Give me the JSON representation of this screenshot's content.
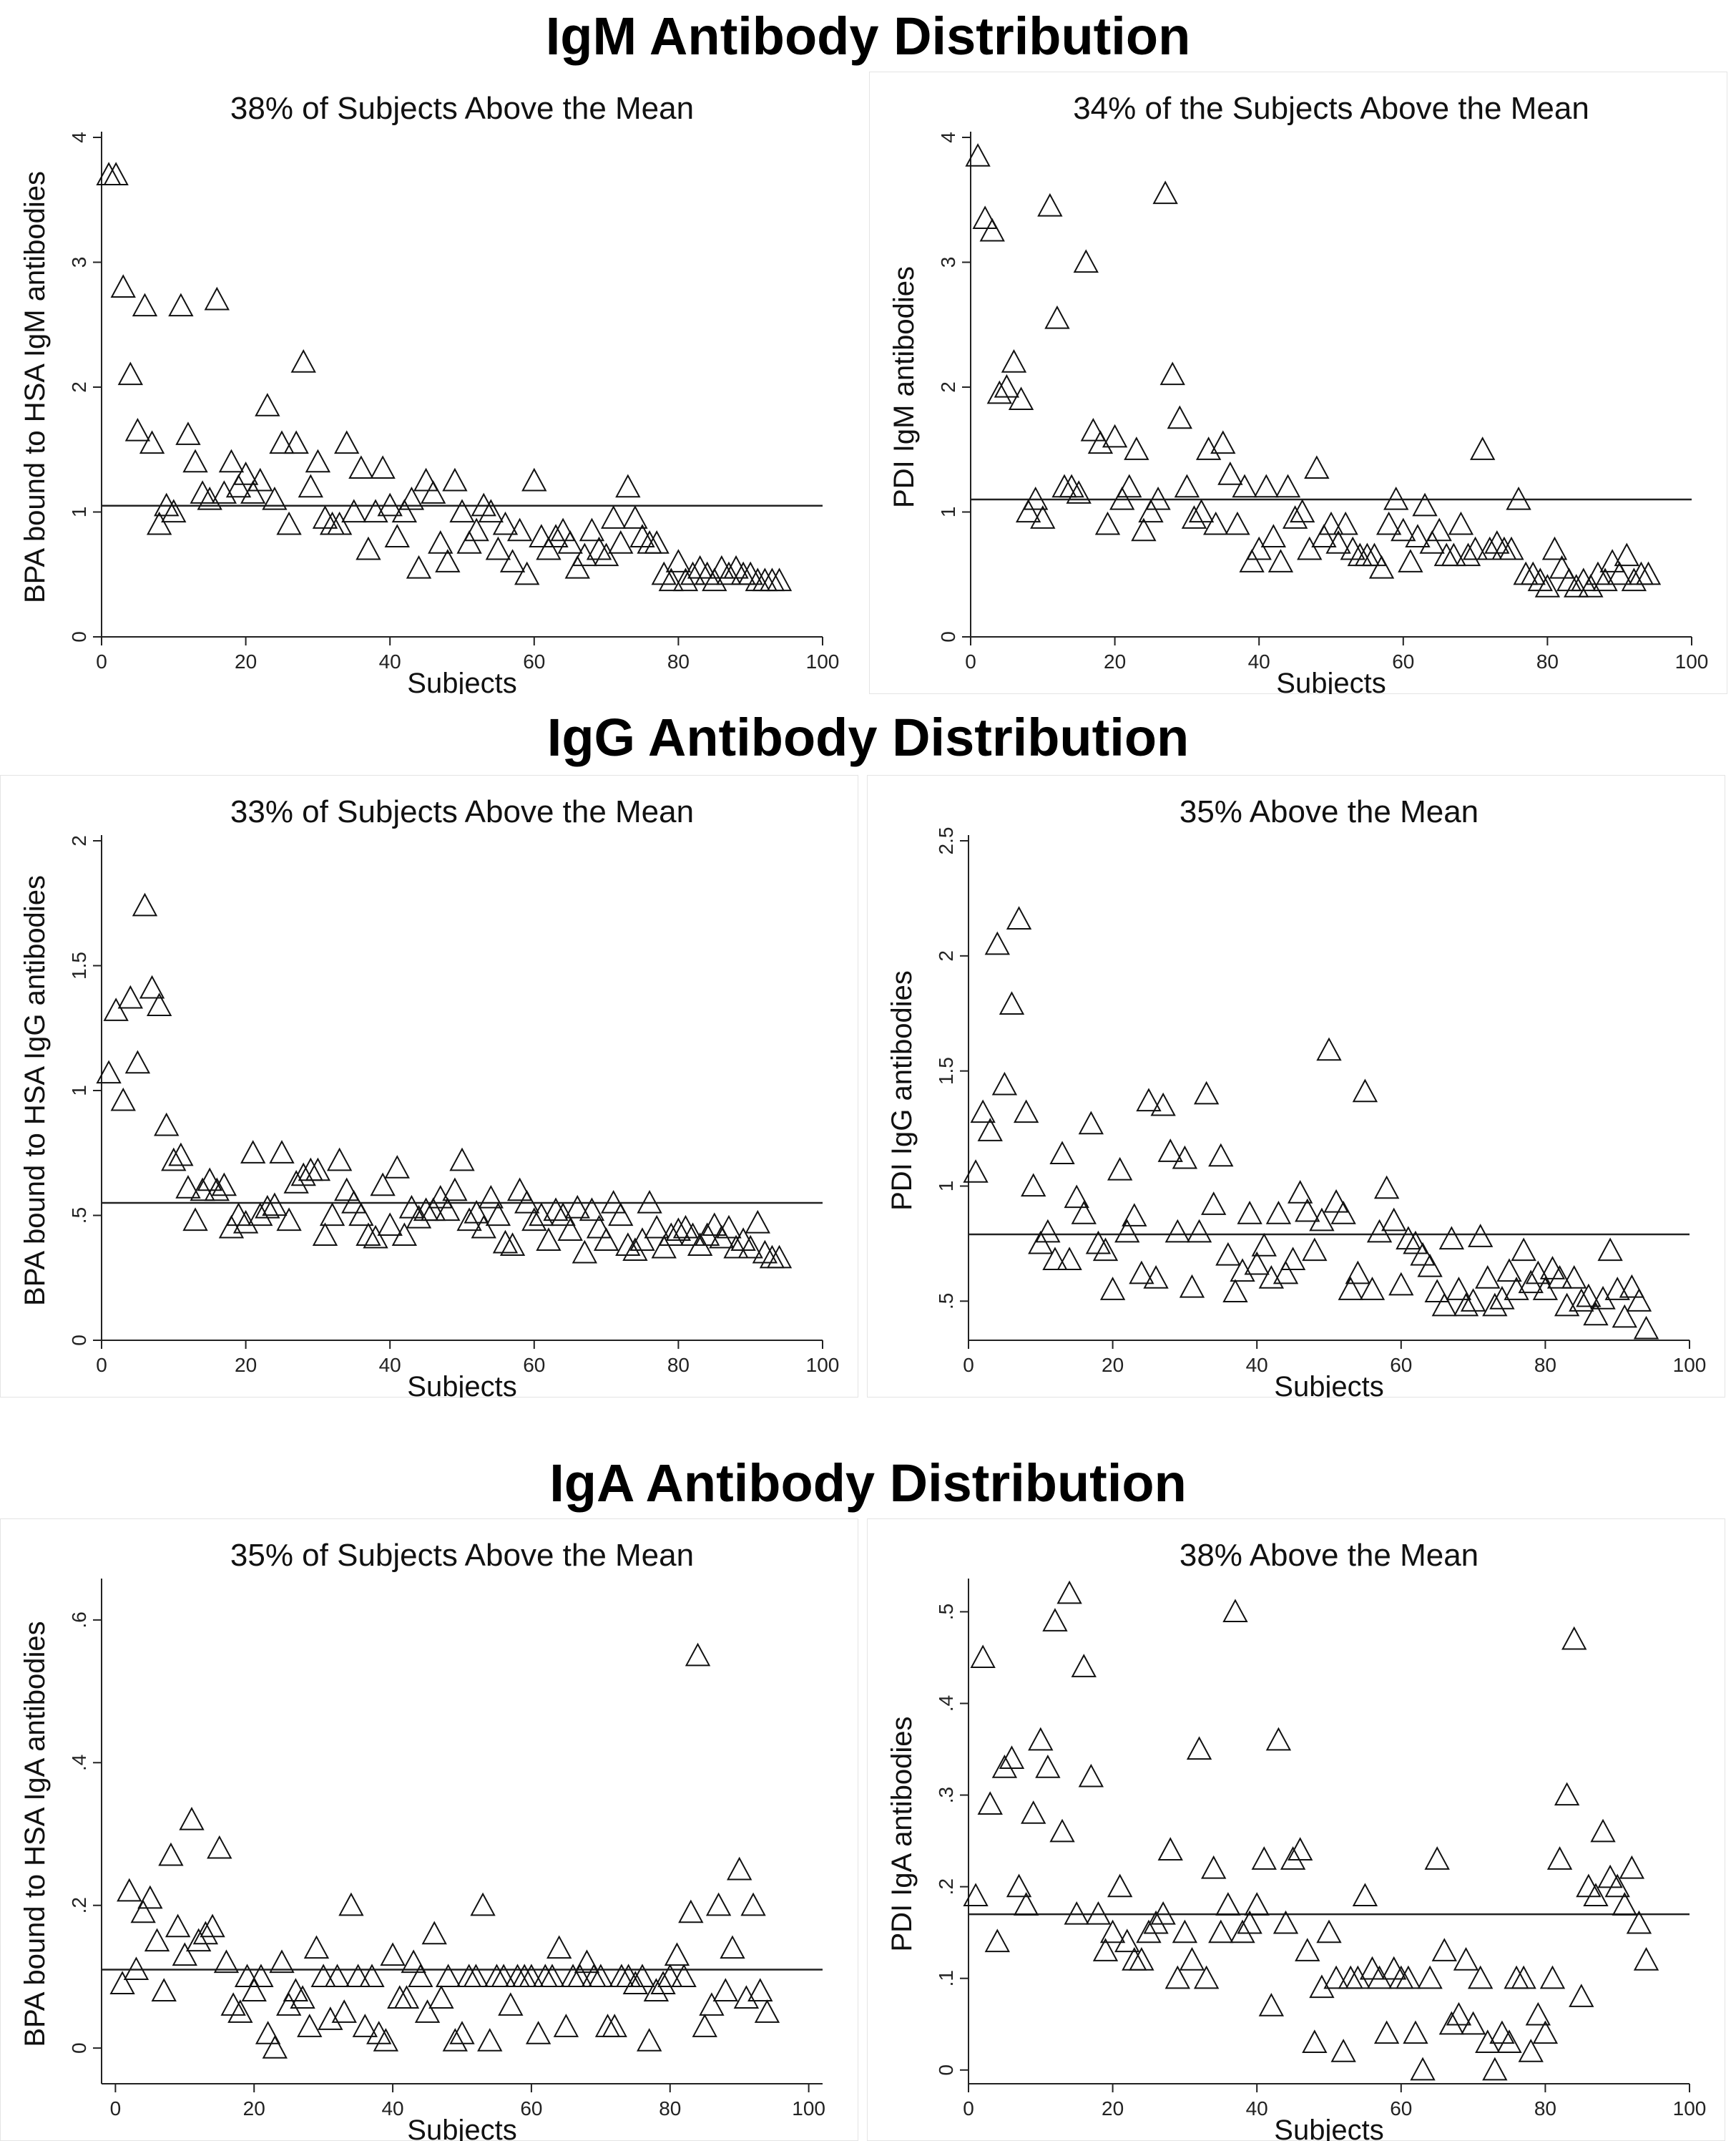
{
  "sections": {
    "igm": "IgM Antibody Distribution",
    "igg": "IgG Antibody Distribution",
    "iga": "IgA Antibody Distribution"
  },
  "chart_data": [
    {
      "id": "igm_bpa",
      "type": "scatter",
      "title": "38% of Subjects Above the Mean",
      "xlabel": "Subjects",
      "ylabel": "BPA bound to HSA IgM antibodies",
      "xlim": [
        0,
        100
      ],
      "ylim": [
        0,
        4
      ],
      "xticks": [
        0,
        20,
        40,
        60,
        80,
        100
      ],
      "yticks": [
        {
          "v": 0,
          "label": "0"
        },
        {
          "v": 1,
          "label": "1"
        },
        {
          "v": 2,
          "label": "2"
        },
        {
          "v": 3,
          "label": "3"
        },
        {
          "v": 4,
          "label": "4"
        }
      ],
      "mean_line": 1.05,
      "x": [
        1,
        2,
        3,
        4,
        5,
        6,
        7,
        8,
        9,
        10,
        11,
        12,
        13,
        14,
        15,
        16,
        17,
        18,
        19,
        20,
        21,
        22,
        23,
        24,
        25,
        26,
        27,
        28,
        29,
        30,
        31,
        32,
        33,
        34,
        35,
        36,
        37,
        38,
        39,
        40,
        41,
        42,
        43,
        44,
        45,
        46,
        47,
        48,
        49,
        50,
        51,
        52,
        53,
        54,
        55,
        56,
        57,
        58,
        59,
        60,
        61,
        62,
        63,
        64,
        65,
        66,
        67,
        68,
        69,
        70,
        71,
        72,
        73,
        74,
        75,
        76,
        77,
        78,
        79,
        80,
        81,
        82,
        83,
        84,
        85,
        86,
        87,
        88,
        89,
        90,
        91,
        92,
        93,
        94
      ],
      "y": [
        3.7,
        3.7,
        2.8,
        2.1,
        1.65,
        2.65,
        1.55,
        0.9,
        1.05,
        1.0,
        2.65,
        1.62,
        1.4,
        1.15,
        1.1,
        2.7,
        1.15,
        1.4,
        1.2,
        1.3,
        1.15,
        1.25,
        1.85,
        1.1,
        1.55,
        0.9,
        1.55,
        2.2,
        1.2,
        1.4,
        0.95,
        0.9,
        0.9,
        1.55,
        1.0,
        1.35,
        0.7,
        1.0,
        1.35,
        1.05,
        0.8,
        1.0,
        1.1,
        0.55,
        1.25,
        1.15,
        0.75,
        0.6,
        1.25,
        1.0,
        0.75,
        0.85,
        1.05,
        1.0,
        0.7,
        0.9,
        0.6,
        0.85,
        0.5,
        1.25,
        0.8,
        0.7,
        0.8,
        0.85,
        0.75,
        0.55,
        0.65,
        0.85,
        0.7,
        0.65,
        0.95,
        0.75,
        1.2,
        0.95,
        0.8,
        0.75,
        0.75,
        0.5,
        0.45,
        0.6,
        0.45,
        0.5,
        0.55,
        0.5,
        0.45,
        0.55,
        0.5,
        0.55,
        0.5,
        0.5,
        0.45,
        0.45,
        0.45,
        0.45
      ]
    },
    {
      "id": "igm_pdi",
      "type": "scatter",
      "title": "34% of the Subjects Above the Mean",
      "xlabel": "Subjects",
      "ylabel": "PDI IgM antibodies",
      "xlim": [
        0,
        100
      ],
      "ylim": [
        0,
        4
      ],
      "xticks": [
        0,
        20,
        40,
        60,
        80,
        100
      ],
      "yticks": [
        {
          "v": 0,
          "label": "0"
        },
        {
          "v": 1,
          "label": "1"
        },
        {
          "v": 2,
          "label": "2"
        },
        {
          "v": 3,
          "label": "3"
        },
        {
          "v": 4,
          "label": "4"
        }
      ],
      "mean_line": 1.1,
      "x": [
        1,
        2,
        3,
        4,
        5,
        6,
        7,
        8,
        9,
        10,
        11,
        12,
        13,
        14,
        15,
        16,
        17,
        18,
        19,
        20,
        21,
        22,
        23,
        24,
        25,
        26,
        27,
        28,
        29,
        30,
        31,
        32,
        33,
        34,
        35,
        36,
        37,
        38,
        39,
        40,
        41,
        42,
        43,
        44,
        45,
        46,
        47,
        48,
        49,
        50,
        51,
        52,
        53,
        54,
        55,
        56,
        57,
        58,
        59,
        60,
        61,
        62,
        63,
        64,
        65,
        66,
        67,
        68,
        69,
        70,
        71,
        72,
        73,
        74,
        75,
        76,
        77,
        78,
        79,
        80,
        81,
        82,
        83,
        84,
        85,
        86,
        87,
        88,
        89,
        90,
        91,
        92,
        93,
        94
      ],
      "y": [
        3.85,
        3.35,
        3.25,
        1.95,
        2.0,
        2.2,
        1.9,
        1.0,
        1.1,
        0.95,
        3.45,
        2.55,
        1.2,
        1.2,
        1.15,
        3.0,
        1.65,
        1.55,
        0.9,
        1.6,
        1.1,
        1.2,
        1.5,
        0.85,
        1.0,
        1.1,
        3.55,
        2.1,
        1.75,
        1.2,
        0.95,
        1.0,
        1.5,
        0.9,
        1.55,
        1.3,
        0.9,
        1.2,
        0.6,
        0.7,
        1.2,
        0.8,
        0.6,
        1.2,
        0.95,
        1.0,
        0.7,
        1.35,
        0.8,
        0.9,
        0.75,
        0.9,
        0.7,
        0.65,
        0.65,
        0.65,
        0.55,
        0.9,
        1.1,
        0.85,
        0.6,
        0.8,
        1.05,
        0.75,
        0.85,
        0.65,
        0.65,
        0.9,
        0.65,
        0.7,
        1.5,
        0.7,
        0.75,
        0.7,
        0.7,
        1.1,
        0.5,
        0.5,
        0.45,
        0.4,
        0.7,
        0.55,
        0.45,
        0.4,
        0.45,
        0.4,
        0.5,
        0.45,
        0.6,
        0.5,
        0.65,
        0.45,
        0.5,
        0.5
      ]
    },
    {
      "id": "igg_bpa",
      "type": "scatter",
      "title": "33% of Subjects Above the Mean",
      "xlabel": "Subjects",
      "ylabel": "BPA bound to HSA IgG antibodies",
      "xlim": [
        0,
        100
      ],
      "ylim": [
        0,
        2
      ],
      "xticks": [
        0,
        20,
        40,
        60,
        80,
        100
      ],
      "yticks": [
        {
          "v": 0,
          "label": "0"
        },
        {
          "v": 0.5,
          "label": ".5"
        },
        {
          "v": 1,
          "label": "1"
        },
        {
          "v": 1.5,
          "label": "1.5"
        },
        {
          "v": 2,
          "label": "2"
        }
      ],
      "mean_line": 0.55,
      "x": [
        1,
        2,
        3,
        4,
        5,
        6,
        7,
        8,
        9,
        10,
        11,
        12,
        13,
        14,
        15,
        16,
        17,
        18,
        19,
        20,
        21,
        22,
        23,
        24,
        25,
        26,
        27,
        28,
        29,
        30,
        31,
        32,
        33,
        34,
        35,
        36,
        37,
        38,
        39,
        40,
        41,
        42,
        43,
        44,
        45,
        46,
        47,
        48,
        49,
        50,
        51,
        52,
        53,
        54,
        55,
        56,
        57,
        58,
        59,
        60,
        61,
        62,
        63,
        64,
        65,
        66,
        67,
        68,
        69,
        70,
        71,
        72,
        73,
        74,
        75,
        76,
        77,
        78,
        79,
        80,
        81,
        82,
        83,
        84,
        85,
        86,
        87,
        88,
        89,
        90,
        91,
        92,
        93,
        94
      ],
      "y": [
        1.07,
        1.32,
        0.96,
        1.37,
        1.11,
        1.74,
        1.41,
        1.34,
        0.86,
        0.72,
        0.74,
        0.61,
        0.48,
        0.6,
        0.64,
        0.6,
        0.62,
        0.45,
        0.5,
        0.47,
        0.75,
        0.5,
        0.53,
        0.54,
        0.75,
        0.48,
        0.63,
        0.66,
        0.68,
        0.68,
        0.42,
        0.5,
        0.72,
        0.6,
        0.55,
        0.5,
        0.42,
        0.41,
        0.62,
        0.46,
        0.69,
        0.42,
        0.53,
        0.49,
        0.52,
        0.52,
        0.57,
        0.52,
        0.6,
        0.72,
        0.48,
        0.51,
        0.45,
        0.57,
        0.5,
        0.39,
        0.38,
        0.6,
        0.55,
        0.48,
        0.5,
        0.4,
        0.52,
        0.5,
        0.44,
        0.53,
        0.35,
        0.52,
        0.45,
        0.4,
        0.55,
        0.5,
        0.38,
        0.36,
        0.4,
        0.55,
        0.45,
        0.37,
        0.42,
        0.44,
        0.45,
        0.42,
        0.38,
        0.42,
        0.46,
        0.41,
        0.45,
        0.37,
        0.4,
        0.37,
        0.47,
        0.35,
        0.33,
        0.33
      ]
    },
    {
      "id": "igg_pdi",
      "type": "scatter",
      "title": "35% Above the Mean",
      "xlabel": "Subjects",
      "ylabel": "PDI IgG antibodies",
      "xlim": [
        0,
        100
      ],
      "ylim": [
        0.33,
        2.5
      ],
      "xticks": [
        0,
        20,
        40,
        60,
        80,
        100
      ],
      "yticks": [
        {
          "v": 0.5,
          "label": ".5"
        },
        {
          "v": 1,
          "label": "1"
        },
        {
          "v": 1.5,
          "label": "1.5"
        },
        {
          "v": 2,
          "label": "2"
        },
        {
          "v": 2.5,
          "label": "2.5"
        }
      ],
      "mean_line": 0.79,
      "x": [
        1,
        2,
        3,
        4,
        5,
        6,
        7,
        8,
        9,
        10,
        11,
        12,
        13,
        14,
        15,
        16,
        17,
        18,
        19,
        20,
        21,
        22,
        23,
        24,
        25,
        26,
        27,
        28,
        29,
        30,
        31,
        32,
        33,
        34,
        35,
        36,
        37,
        38,
        39,
        40,
        41,
        42,
        43,
        44,
        45,
        46,
        47,
        48,
        49,
        50,
        51,
        52,
        53,
        54,
        55,
        56,
        57,
        58,
        59,
        60,
        61,
        62,
        63,
        64,
        65,
        66,
        67,
        68,
        69,
        70,
        71,
        72,
        73,
        74,
        75,
        76,
        77,
        78,
        79,
        80,
        81,
        82,
        83,
        84,
        85,
        86,
        87,
        88,
        89,
        90,
        91,
        92,
        93,
        94
      ],
      "y": [
        1.06,
        1.32,
        1.24,
        2.05,
        1.44,
        1.79,
        2.16,
        1.32,
        1.0,
        0.75,
        0.8,
        0.68,
        1.14,
        0.68,
        0.95,
        0.88,
        1.27,
        0.75,
        0.72,
        0.55,
        1.07,
        0.8,
        0.87,
        0.62,
        1.37,
        0.6,
        1.35,
        1.15,
        0.8,
        1.12,
        0.56,
        0.8,
        1.4,
        0.92,
        1.13,
        0.7,
        0.54,
        0.63,
        0.88,
        0.66,
        0.74,
        0.6,
        0.88,
        0.62,
        0.68,
        0.97,
        0.89,
        0.72,
        0.85,
        1.59,
        0.93,
        0.88,
        0.55,
        0.62,
        1.41,
        0.55,
        0.8,
        0.99,
        0.85,
        0.57,
        0.77,
        0.75,
        0.7,
        0.65,
        0.54,
        0.48,
        0.77,
        0.55,
        0.48,
        0.5,
        0.78,
        0.6,
        0.48,
        0.51,
        0.63,
        0.55,
        0.72,
        0.58,
        0.62,
        0.55,
        0.64,
        0.6,
        0.48,
        0.6,
        0.5,
        0.52,
        0.44,
        0.51,
        0.72,
        0.55,
        0.43,
        0.56,
        0.5,
        0.38
      ]
    },
    {
      "id": "iga_bpa",
      "type": "scatter",
      "title": "35% of Subjects Above the Mean",
      "xlabel": "Subjects",
      "ylabel": "BPA bound to HSA IgA antibodies",
      "xlim": [
        -2,
        102
      ],
      "ylim": [
        -0.05,
        0.65
      ],
      "xticks": [
        0,
        20,
        40,
        60,
        80,
        100
      ],
      "yticks": [
        {
          "v": 0,
          "label": "0"
        },
        {
          "v": 0.2,
          "label": ".2"
        },
        {
          "v": 0.4,
          "label": ".4"
        },
        {
          "v": 0.6,
          "label": ".6"
        }
      ],
      "mean_line": 0.11,
      "x": [
        1,
        2,
        3,
        4,
        5,
        6,
        7,
        8,
        9,
        10,
        11,
        12,
        13,
        14,
        15,
        16,
        17,
        18,
        19,
        20,
        21,
        22,
        23,
        24,
        25,
        26,
        27,
        28,
        29,
        30,
        31,
        32,
        33,
        34,
        35,
        36,
        37,
        38,
        39,
        40,
        41,
        42,
        43,
        44,
        45,
        46,
        47,
        48,
        49,
        50,
        51,
        52,
        53,
        54,
        55,
        56,
        57,
        58,
        59,
        60,
        61,
        62,
        63,
        64,
        65,
        66,
        67,
        68,
        69,
        70,
        71,
        72,
        73,
        74,
        75,
        76,
        77,
        78,
        79,
        80,
        81,
        82,
        83,
        84,
        85,
        86,
        87,
        88,
        89,
        90,
        91,
        92,
        93,
        94
      ],
      "y": [
        0.09,
        0.22,
        0.11,
        0.19,
        0.21,
        0.15,
        0.08,
        0.27,
        0.17,
        0.13,
        0.32,
        0.15,
        0.16,
        0.17,
        0.28,
        0.12,
        0.06,
        0.05,
        0.1,
        0.08,
        0.1,
        0.02,
        0.0,
        0.12,
        0.06,
        0.08,
        0.07,
        0.03,
        0.14,
        0.1,
        0.04,
        0.1,
        0.05,
        0.2,
        0.1,
        0.03,
        0.1,
        0.02,
        0.01,
        0.13,
        0.07,
        0.07,
        0.12,
        0.1,
        0.05,
        0.16,
        0.07,
        0.1,
        0.01,
        0.02,
        0.1,
        0.1,
        0.2,
        0.01,
        0.1,
        0.1,
        0.06,
        0.1,
        0.1,
        0.1,
        0.02,
        0.1,
        0.1,
        0.14,
        0.03,
        0.1,
        0.1,
        0.12,
        0.1,
        0.1,
        0.03,
        0.03,
        0.1,
        0.1,
        0.09,
        0.1,
        0.01,
        0.08,
        0.09,
        0.1,
        0.13,
        0.1,
        0.19,
        0.55,
        0.03,
        0.06,
        0.2,
        0.08,
        0.14,
        0.25,
        0.07,
        0.2,
        0.08,
        0.05
      ]
    },
    {
      "id": "iga_pdi",
      "type": "scatter",
      "title": "38% Above the Mean",
      "xlabel": "Subjects",
      "ylabel": "PDI  IgA antibodies",
      "xlim": [
        0,
        100
      ],
      "ylim": [
        -0.015,
        0.53
      ],
      "xticks": [
        0,
        20,
        40,
        60,
        80,
        100
      ],
      "yticks": [
        {
          "v": 0,
          "label": "0"
        },
        {
          "v": 0.1,
          "label": ".1"
        },
        {
          "v": 0.2,
          "label": ".2"
        },
        {
          "v": 0.3,
          "label": ".3"
        },
        {
          "v": 0.4,
          "label": ".4"
        },
        {
          "v": 0.5,
          "label": ".5"
        }
      ],
      "mean_line": 0.17,
      "x": [
        1,
        2,
        3,
        4,
        5,
        6,
        7,
        8,
        9,
        10,
        11,
        12,
        13,
        14,
        15,
        16,
        17,
        18,
        19,
        20,
        21,
        22,
        23,
        24,
        25,
        26,
        27,
        28,
        29,
        30,
        31,
        32,
        33,
        34,
        35,
        36,
        37,
        38,
        39,
        40,
        41,
        42,
        43,
        44,
        45,
        46,
        47,
        48,
        49,
        50,
        51,
        52,
        53,
        54,
        55,
        56,
        57,
        58,
        59,
        60,
        61,
        62,
        63,
        64,
        65,
        66,
        67,
        68,
        69,
        70,
        71,
        72,
        73,
        74,
        75,
        76,
        77,
        78,
        79,
        80,
        81,
        82,
        83,
        84,
        85,
        86,
        87,
        88,
        89,
        90,
        91,
        92,
        93,
        94
      ],
      "y": [
        0.19,
        0.45,
        0.29,
        0.14,
        0.33,
        0.34,
        0.2,
        0.18,
        0.28,
        0.36,
        0.33,
        0.49,
        0.26,
        0.52,
        0.17,
        0.44,
        0.32,
        0.17,
        0.13,
        0.15,
        0.2,
        0.14,
        0.12,
        0.12,
        0.15,
        0.16,
        0.17,
        0.24,
        0.1,
        0.15,
        0.12,
        0.35,
        0.1,
        0.22,
        0.15,
        0.18,
        0.5,
        0.15,
        0.16,
        0.18,
        0.23,
        0.07,
        0.36,
        0.16,
        0.23,
        0.24,
        0.13,
        0.03,
        0.09,
        0.15,
        0.1,
        0.02,
        0.1,
        0.1,
        0.19,
        0.11,
        0.1,
        0.04,
        0.11,
        0.1,
        0.1,
        0.04,
        0.0,
        0.1,
        0.23,
        0.13,
        0.05,
        0.06,
        0.12,
        0.05,
        0.1,
        0.03,
        0.0,
        0.04,
        0.03,
        0.1,
        0.1,
        0.02,
        0.06,
        0.04,
        0.1,
        0.23,
        0.3,
        0.47,
        0.08,
        0.2,
        0.19,
        0.26,
        0.21,
        0.2,
        0.18,
        0.22,
        0.16,
        0.12
      ]
    }
  ]
}
